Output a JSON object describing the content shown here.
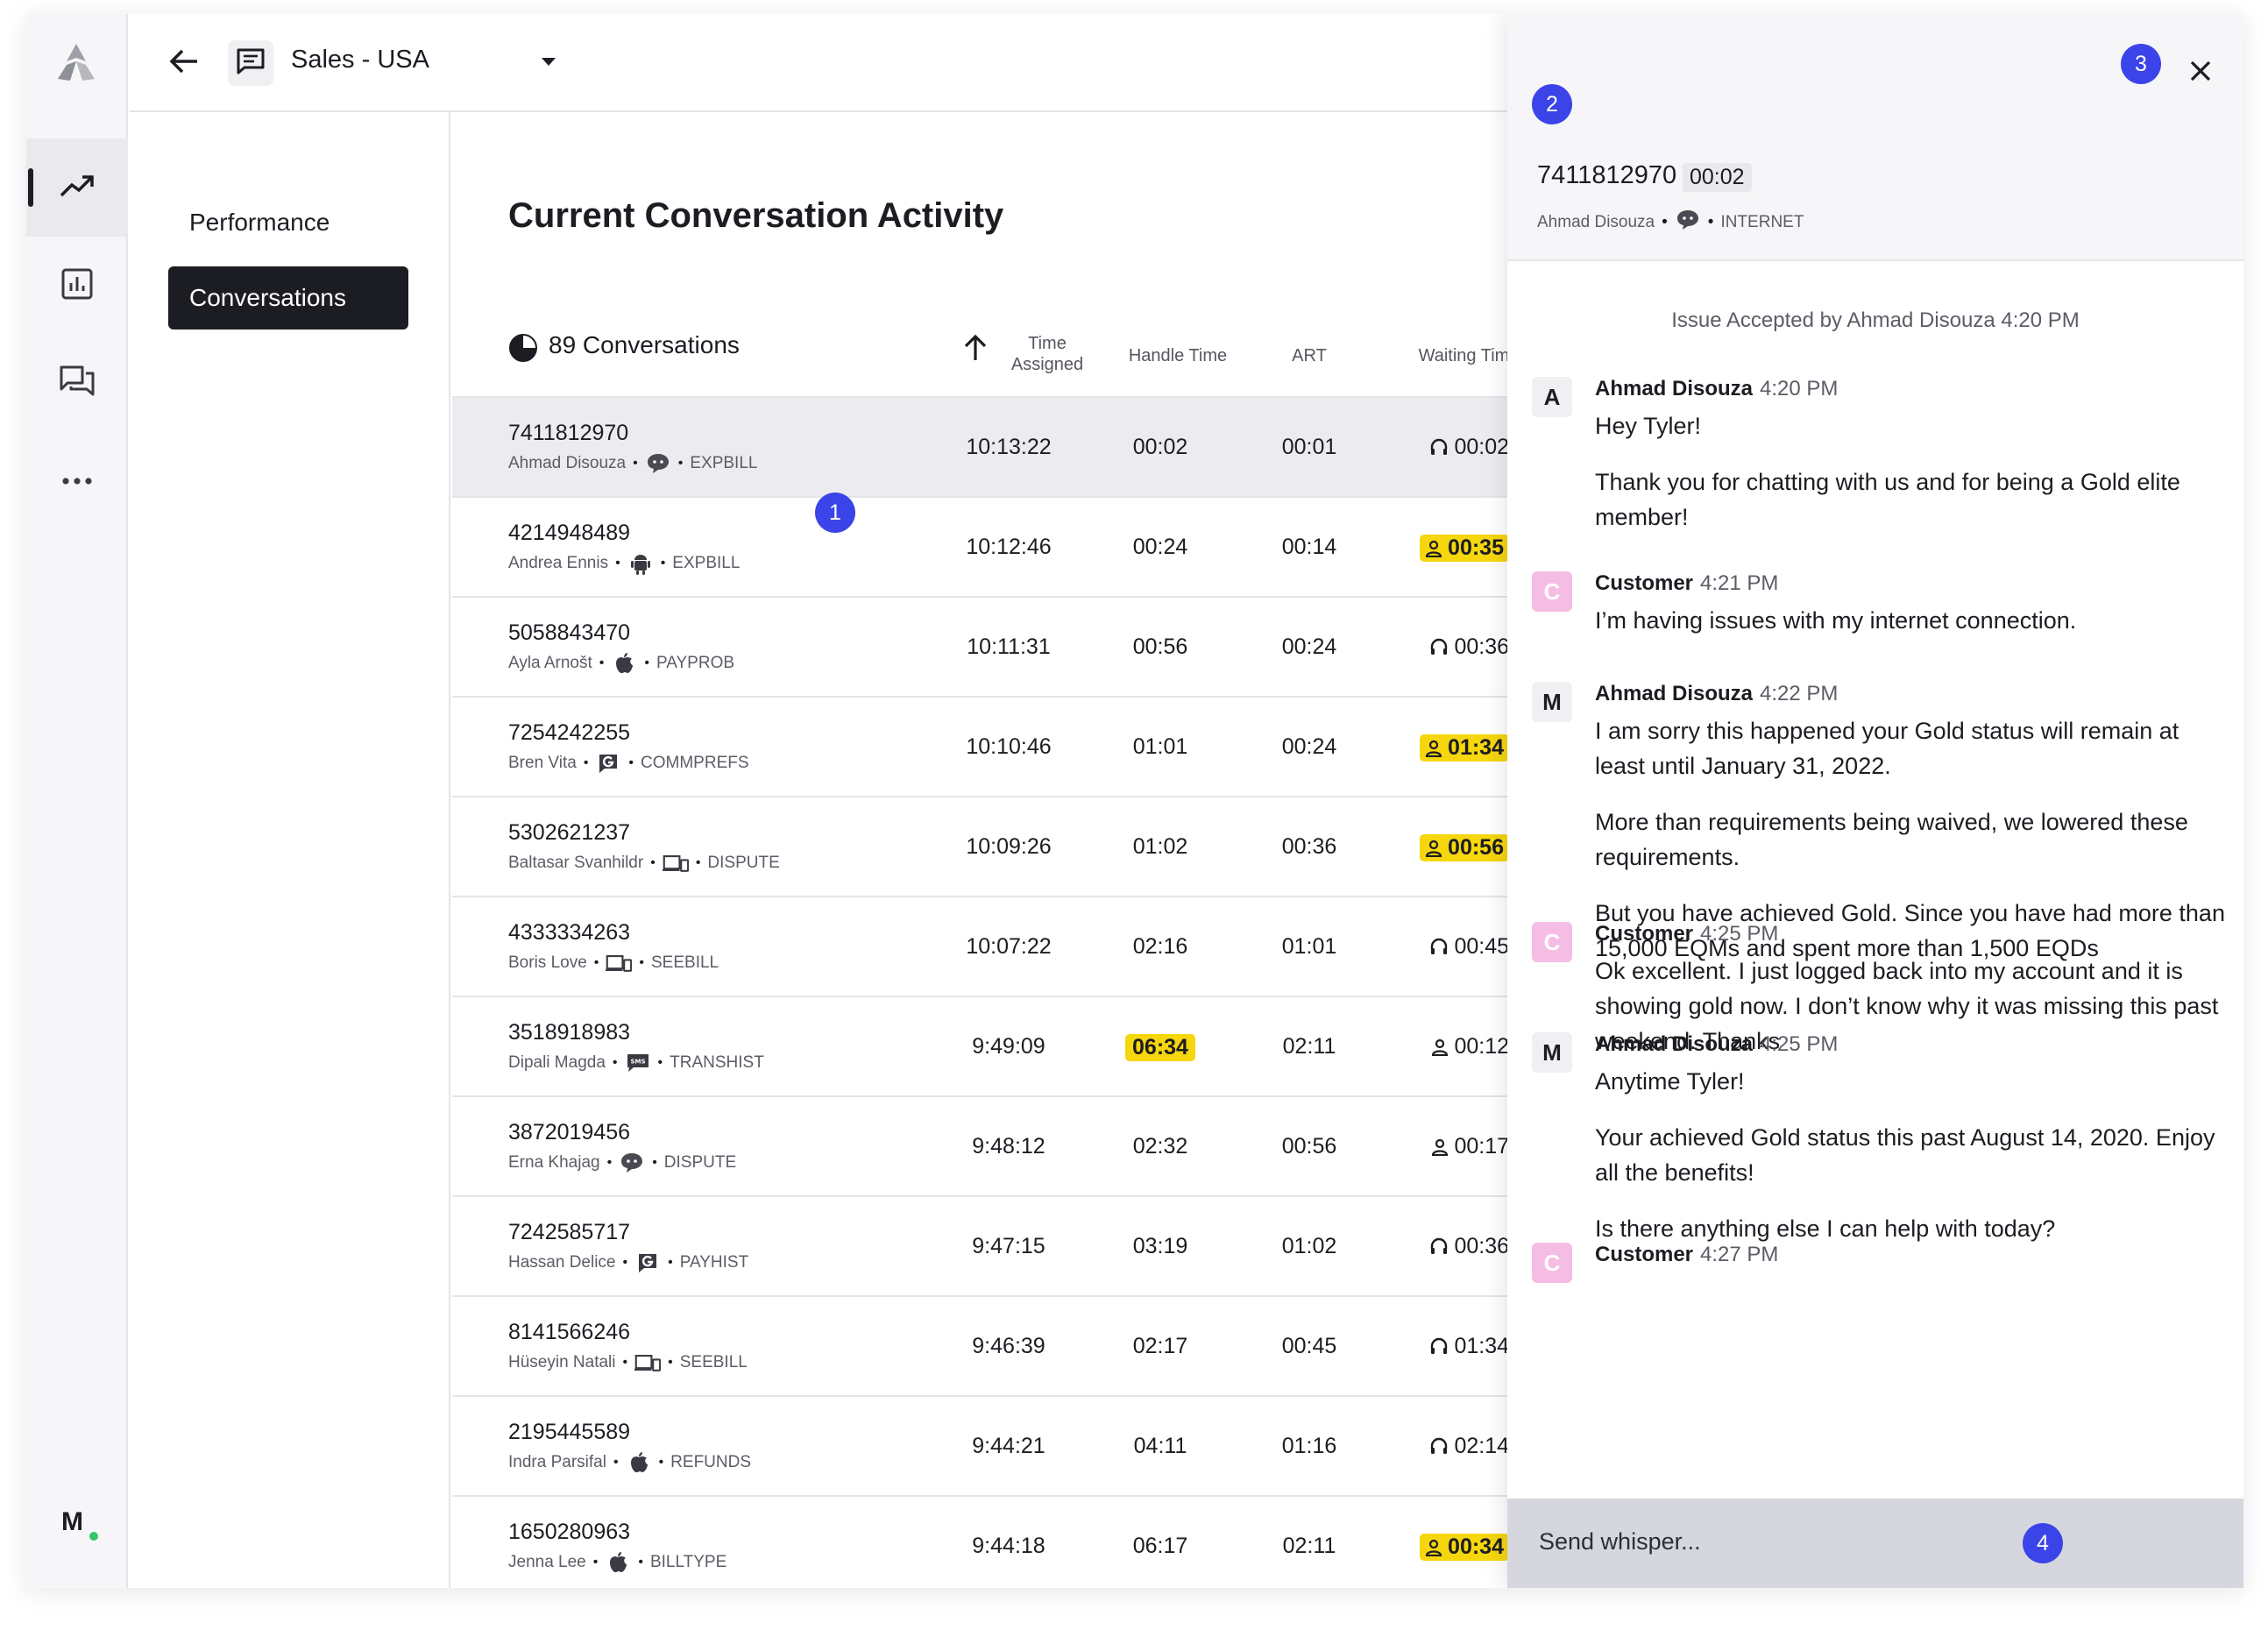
{
  "topbar": {
    "queue_title": "Sales - USA"
  },
  "subnav": {
    "items": [
      {
        "label": "Performance"
      },
      {
        "label": "Conversations"
      }
    ]
  },
  "main": {
    "title": "Current Conversation Activity",
    "count_label": "89 Conversations",
    "columns": {
      "time_assigned": "Time\nAssigned",
      "handle_time": "Handle Time",
      "art": "ART",
      "waiting_time": "Waiting Time"
    },
    "rows": [
      {
        "number": "7411812970",
        "agent": "Ahmad Disouza",
        "channel_icon": "chat-bubble-icon",
        "code": "EXPBILL",
        "time": "10:13:22",
        "handle": "00:02",
        "art": "00:01",
        "wait": "00:02",
        "wait_icon": "headset-icon",
        "wait_alert": false,
        "handle_alert": false,
        "selected": true
      },
      {
        "number": "4214948489",
        "agent": "Andrea Ennis",
        "channel_icon": "android-icon",
        "code": "EXPBILL",
        "time": "10:12:46",
        "handle": "00:24",
        "art": "00:14",
        "wait": "00:35",
        "wait_icon": "person-icon",
        "wait_alert": true,
        "handle_alert": false,
        "selected": false
      },
      {
        "number": "5058843470",
        "agent": "Ayla Arnošt",
        "channel_icon": "apple-icon",
        "code": "PAYPROB",
        "time": "10:11:31",
        "handle": "00:56",
        "art": "00:24",
        "wait": "00:36",
        "wait_icon": "headset-icon",
        "wait_alert": false,
        "handle_alert": false,
        "selected": false
      },
      {
        "number": "7254242255",
        "agent": "Bren Vita",
        "channel_icon": "google-icon",
        "code": "COMMPREFS",
        "time": "10:10:46",
        "handle": "01:01",
        "art": "00:24",
        "wait": "01:34",
        "wait_icon": "person-icon",
        "wait_alert": true,
        "handle_alert": false,
        "selected": false
      },
      {
        "number": "5302621237",
        "agent": "Baltasar Svanhildr",
        "channel_icon": "devices-icon",
        "code": "DISPUTE",
        "time": "10:09:26",
        "handle": "01:02",
        "art": "00:36",
        "wait": "00:56",
        "wait_icon": "person-icon",
        "wait_alert": true,
        "handle_alert": false,
        "selected": false
      },
      {
        "number": "4333334263",
        "agent": "Boris Love",
        "channel_icon": "devices-icon",
        "code": "SEEBILL",
        "time": "10:07:22",
        "handle": "02:16",
        "art": "01:01",
        "wait": "00:45",
        "wait_icon": "headset-icon",
        "wait_alert": false,
        "handle_alert": false,
        "selected": false
      },
      {
        "number": "3518918983",
        "agent": "Dipali Magda",
        "channel_icon": "sms-icon",
        "code": "TRANSHIST",
        "time": "9:49:09",
        "handle": "06:34",
        "art": "02:11",
        "wait": "00:12",
        "wait_icon": "person-icon",
        "wait_alert": false,
        "handle_alert": true,
        "selected": false
      },
      {
        "number": "3872019456",
        "agent": "Erna Khajag",
        "channel_icon": "chat-bubble-icon",
        "code": "DISPUTE",
        "time": "9:48:12",
        "handle": "02:32",
        "art": "00:56",
        "wait": "00:17",
        "wait_icon": "person-icon",
        "wait_alert": false,
        "handle_alert": false,
        "selected": false
      },
      {
        "number": "7242585717",
        "agent": "Hassan Delice",
        "channel_icon": "google-icon",
        "code": "PAYHIST",
        "time": "9:47:15",
        "handle": "03:19",
        "art": "01:02",
        "wait": "00:36",
        "wait_icon": "headset-icon",
        "wait_alert": false,
        "handle_alert": false,
        "selected": false
      },
      {
        "number": "8141566246",
        "agent": "Hüseyin Natali",
        "channel_icon": "devices-icon",
        "code": "SEEBILL",
        "time": "9:46:39",
        "handle": "02:17",
        "art": "00:45",
        "wait": "01:34",
        "wait_icon": "headset-icon",
        "wait_alert": false,
        "handle_alert": false,
        "selected": false
      },
      {
        "number": "2195445589",
        "agent": "Indra Parsifal",
        "channel_icon": "apple-icon",
        "code": "REFUNDS",
        "time": "9:44:21",
        "handle": "04:11",
        "art": "01:16",
        "wait": "02:14",
        "wait_icon": "headset-icon",
        "wait_alert": false,
        "handle_alert": false,
        "selected": false
      },
      {
        "number": "1650280963",
        "agent": "Jenna Lee",
        "channel_icon": "apple-icon",
        "code": "BILLTYPE",
        "time": "9:44:18",
        "handle": "06:17",
        "art": "02:11",
        "wait": "00:34",
        "wait_icon": "person-icon",
        "wait_alert": true,
        "handle_alert": false,
        "selected": false
      }
    ]
  },
  "markers": [
    "1",
    "2",
    "3",
    "4"
  ],
  "panel": {
    "number": "7411812970",
    "timer": "00:02",
    "agent": "Ahmad Disouza",
    "channel": "INTERNET",
    "system_message": "Issue Accepted by Ahmad Disouza 4:20 PM",
    "messages": [
      {
        "avatar": "A",
        "author": "Ahmad Disouza",
        "time": "4:20 PM",
        "paragraphs": [
          "Hey Tyler!",
          "Thank you for chatting with us and for being a Gold elite member!"
        ]
      },
      {
        "avatar": "C",
        "author": "Customer",
        "time": "4:21 PM",
        "paragraphs": [
          "I’m having issues with my internet connection."
        ]
      },
      {
        "avatar": "M",
        "author": "Ahmad Disouza",
        "time": "4:22 PM",
        "paragraphs": [
          "I am sorry this happened your Gold status will remain at least until January 31, 2022.",
          "More than requirements being waived, we lowered these requirements.",
          "But you have achieved Gold. Since you have had more than 15,000 EQMs and spent more than 1,500 EQDs"
        ]
      },
      {
        "avatar": "C",
        "author": "Customer",
        "time": "4:25 PM",
        "paragraphs": [
          "Ok excellent. I just logged back into my account and it is showing gold now. I don’t know why it was missing this past weekend. Thanks"
        ]
      },
      {
        "avatar": "M",
        "author": "Ahmad Disouza",
        "time": "4:25 PM",
        "paragraphs": [
          "Anytime Tyler!",
          "Your achieved Gold status this past August 14, 2020. Enjoy all the benefits!",
          "Is there anything else I can help with today?"
        ]
      },
      {
        "avatar": "C",
        "author": "Customer",
        "time": "4:27 PM",
        "paragraphs": []
      }
    ],
    "composer_placeholder": "Send whisper..."
  },
  "user_avatar": "M",
  "colors": {
    "accent": "#3a44e8",
    "alert": "#f6d60c",
    "dark": "#1c1d22",
    "customer": "#f6bde4",
    "online": "#36c46a"
  }
}
